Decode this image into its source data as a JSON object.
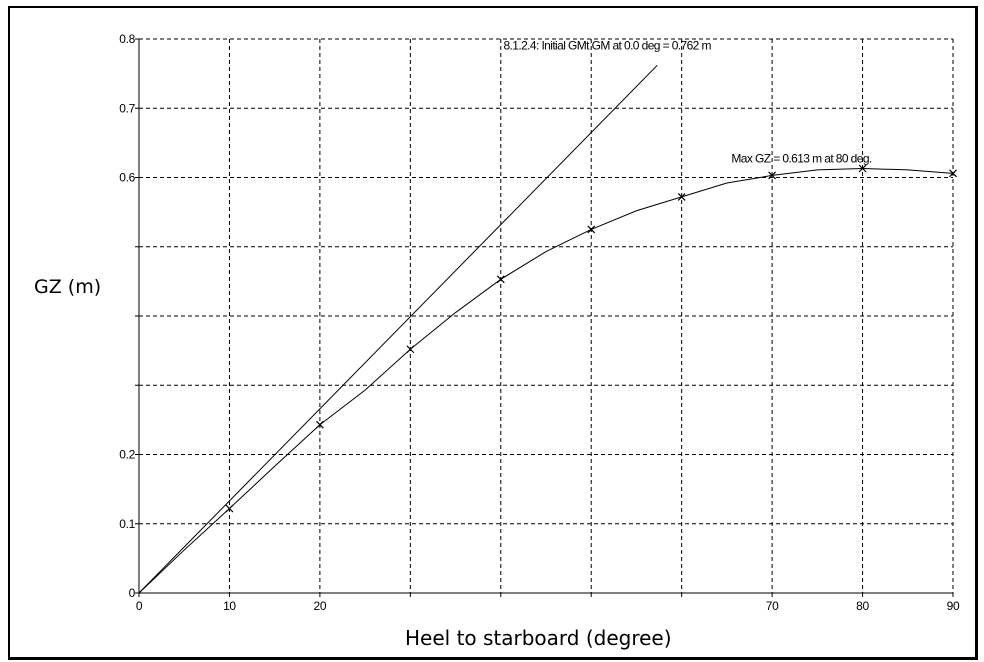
{
  "chart_data": {
    "type": "line",
    "xlabel": "Heel to starboard (degree)",
    "ylabel": "GZ (m)",
    "xlim": [
      0,
      90
    ],
    "ylim": [
      0,
      0.8
    ],
    "grid": true,
    "x_ticks": [
      0,
      10,
      20,
      30,
      40,
      50,
      60,
      70,
      80,
      90
    ],
    "x_tick_labels": [
      "0",
      "10",
      "20",
      "",
      "",
      "",
      "",
      "70",
      "80",
      "90"
    ],
    "y_ticks": [
      0,
      0.1,
      0.2,
      0.3,
      0.4,
      0.5,
      0.6,
      0.7,
      0.8
    ],
    "y_tick_labels": [
      "0",
      "0.1",
      "0.2",
      "",
      "",
      "",
      "0.6",
      "0.7",
      "0.8"
    ],
    "series": [
      {
        "line_style": "solid",
        "marker": "x",
        "x": [
          0,
          5,
          10,
          15,
          20,
          25,
          30,
          35,
          40,
          45,
          50,
          55,
          60,
          65,
          70,
          75,
          80,
          85,
          90
        ],
        "y": [
          0,
          0.062,
          0.122,
          0.183,
          0.243,
          0.293,
          0.352,
          0.405,
          0.453,
          0.493,
          0.525,
          0.552,
          0.572,
          0.592,
          0.603,
          0.611,
          0.613,
          0.611,
          0.606
        ],
        "marker_x": [
          10,
          20,
          30,
          40,
          50,
          60,
          70,
          80,
          90
        ]
      },
      {
        "line_style": "solid",
        "x": [
          0,
          57.3
        ],
        "y": [
          0,
          0.762
        ]
      }
    ],
    "annotations": [
      {
        "text": "8.1.2.4: Initial GMt GM at 0.0 deg = 0.762 m",
        "x": 40.3,
        "y": 0.785
      },
      {
        "text": "Max GZ = 0.613 m at 80 deg.",
        "x": 65.5,
        "y": 0.622
      }
    ]
  }
}
